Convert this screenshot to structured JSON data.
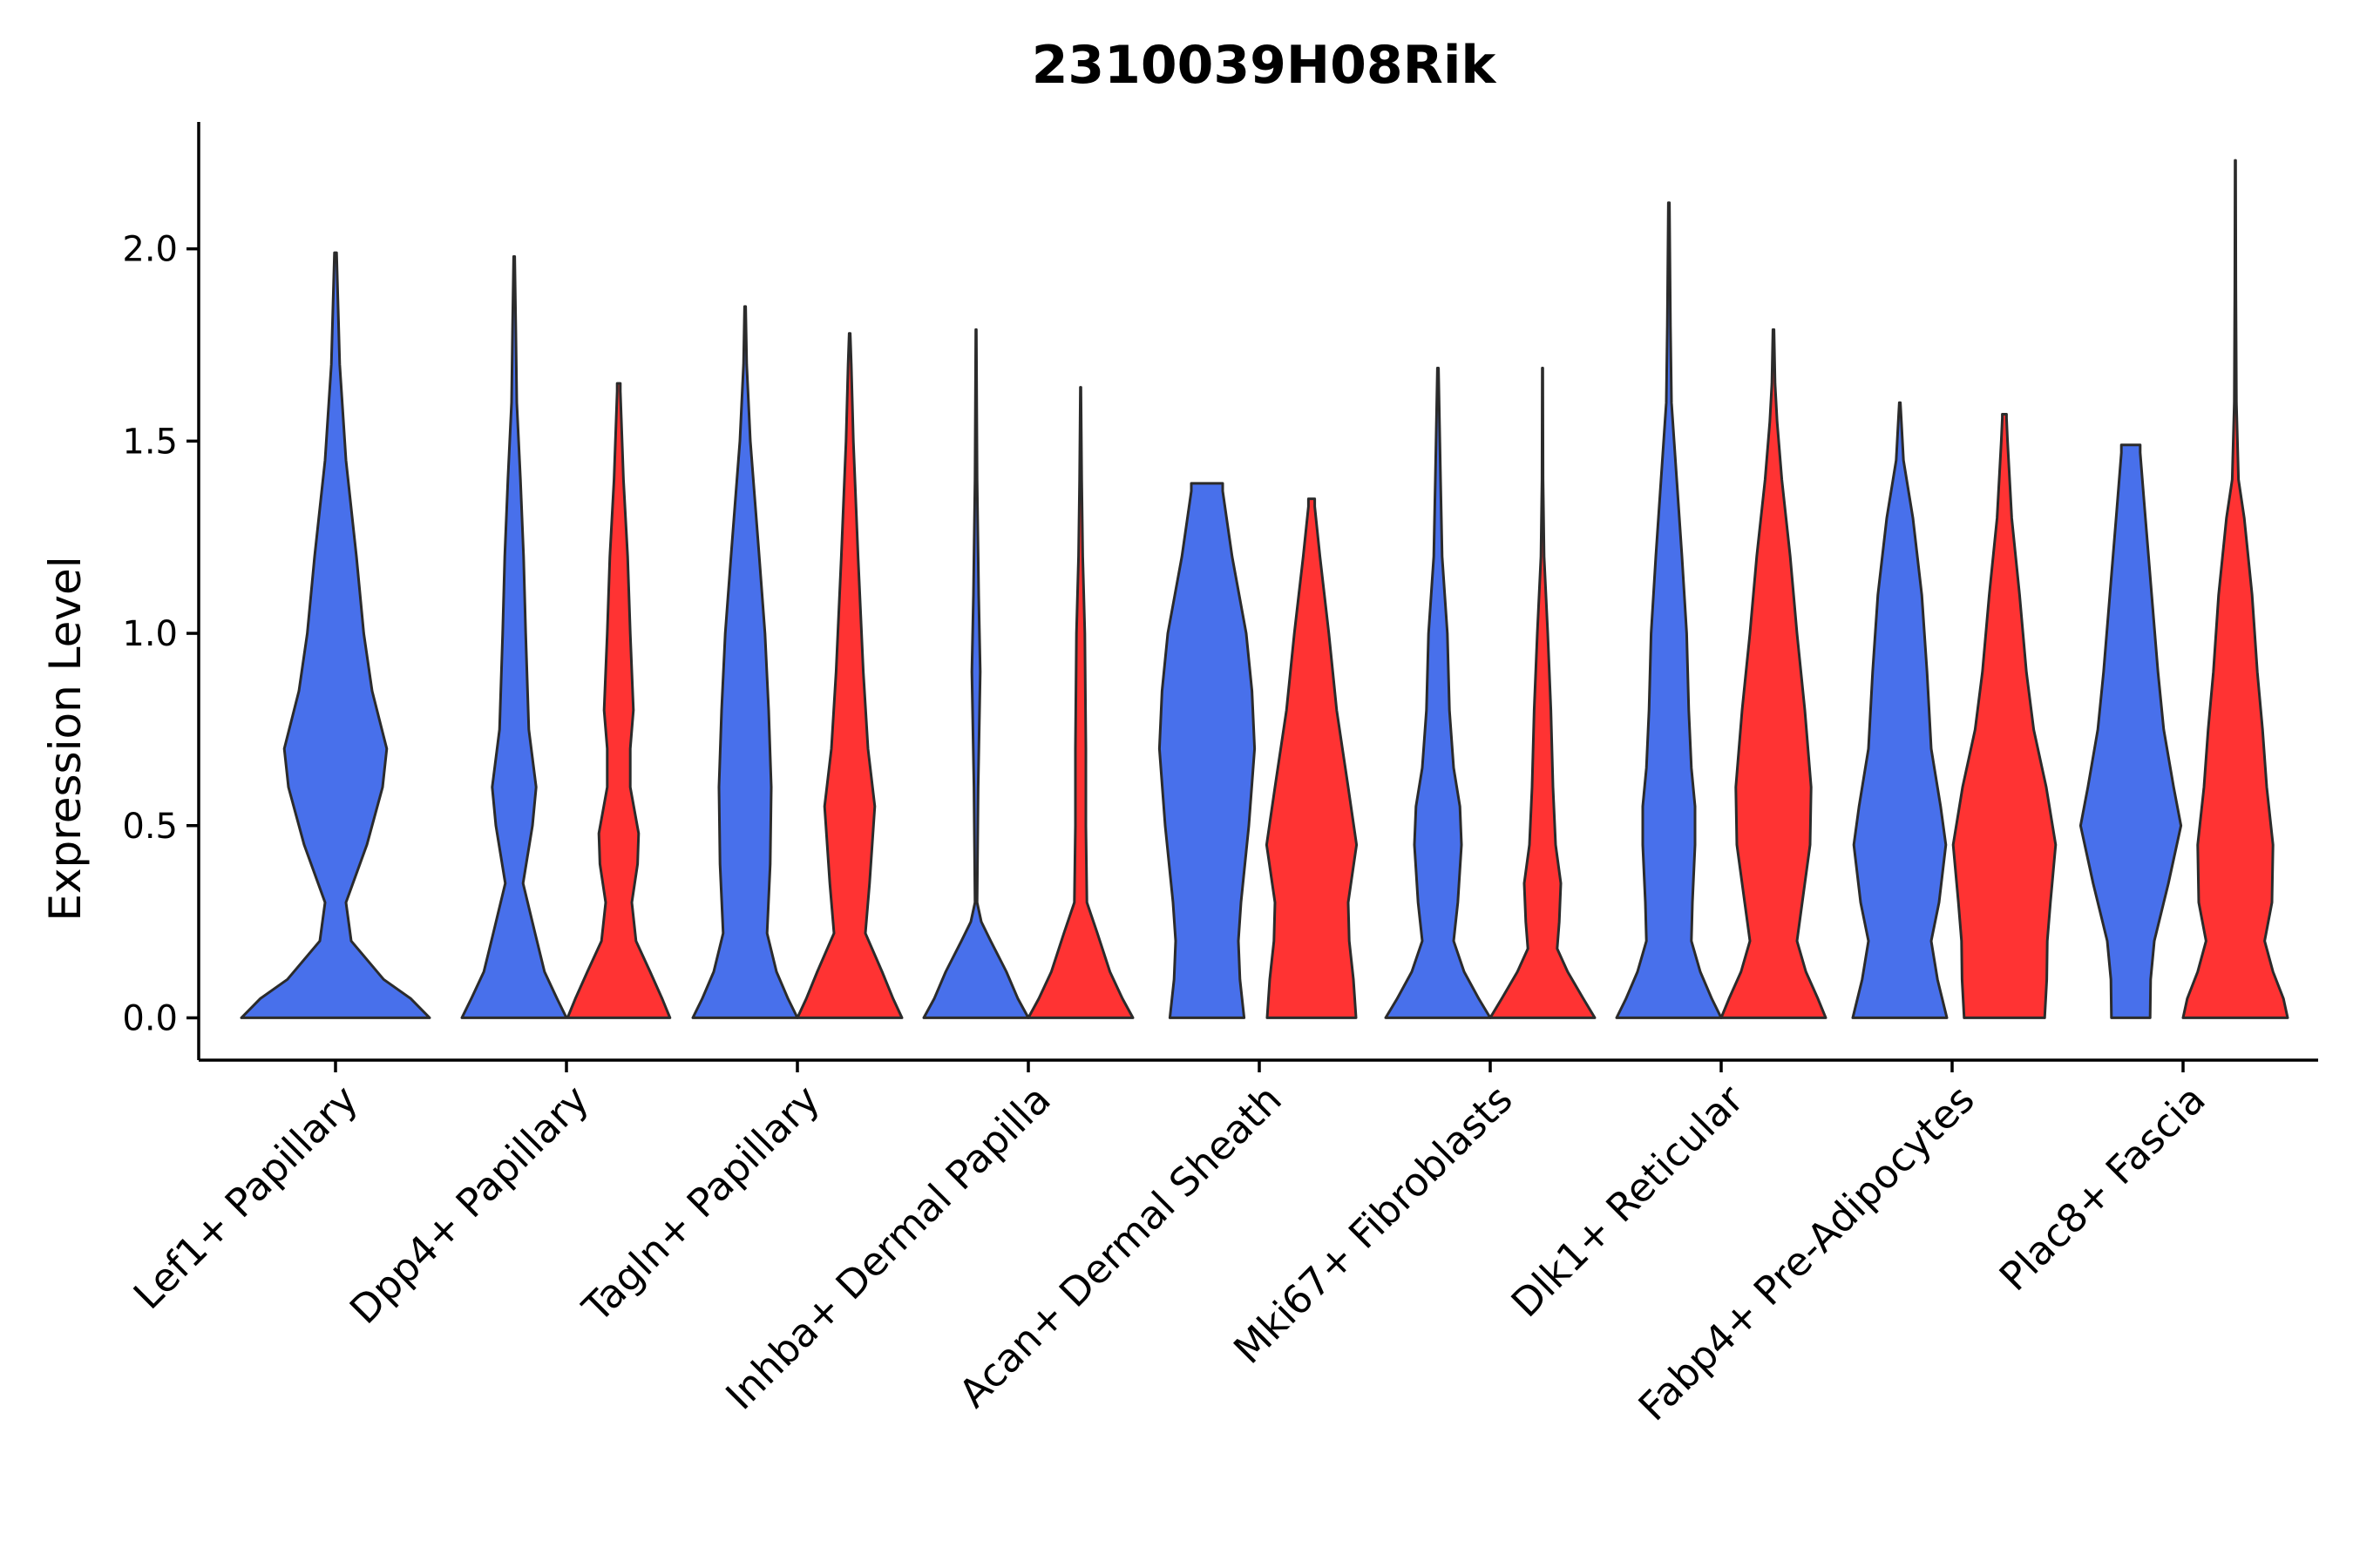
{
  "chart_data": {
    "type": "violin",
    "title": "2310039H08Rik",
    "xlabel": "",
    "ylabel": "Expression Level",
    "ylim": [
      -0.11,
      2.33
    ],
    "yticks": [
      0.0,
      0.5,
      1.0,
      1.5,
      2.0
    ],
    "ytick_labels": [
      "0.0",
      "0.5",
      "1.0",
      "1.5",
      "2.0"
    ],
    "categories": [
      "Lef1+ Papillary",
      "Dpp4+ Papillary",
      "Tagln+ Papillary",
      "Inhba+ Dermal Papilla",
      "Acan+ Dermal Sheath",
      "Mki67+ Fibroblasts",
      "Dlk1+ Reticular",
      "Fabp4+ Pre-Adipocytes",
      "Plac8+ Fascia"
    ],
    "colors": {
      "group1": "#4870eb",
      "group2": "#ff3333"
    },
    "violins": [
      {
        "category": 0,
        "group": "group1",
        "max": 1.99,
        "profile": [
          [
            0,
            0.9
          ],
          [
            0.05,
            0.72
          ],
          [
            0.1,
            0.46
          ],
          [
            0.2,
            0.15
          ],
          [
            0.3,
            0.1
          ],
          [
            0.45,
            0.3
          ],
          [
            0.6,
            0.45
          ],
          [
            0.7,
            0.49
          ],
          [
            0.85,
            0.35
          ],
          [
            1.0,
            0.27
          ],
          [
            1.2,
            0.2
          ],
          [
            1.45,
            0.1
          ],
          [
            1.7,
            0.04
          ],
          [
            1.99,
            0.01
          ]
        ]
      },
      {
        "category": 1,
        "group": "group1",
        "max": 1.98,
        "profile": [
          [
            0,
            1.0
          ],
          [
            0.05,
            0.82
          ],
          [
            0.12,
            0.58
          ],
          [
            0.22,
            0.4
          ],
          [
            0.35,
            0.17
          ],
          [
            0.5,
            0.35
          ],
          [
            0.6,
            0.42
          ],
          [
            0.75,
            0.28
          ],
          [
            1.0,
            0.22
          ],
          [
            1.2,
            0.18
          ],
          [
            1.4,
            0.12
          ],
          [
            1.6,
            0.05
          ],
          [
            1.8,
            0.03
          ],
          [
            1.98,
            0.01
          ]
        ]
      },
      {
        "category": 1,
        "group": "group2",
        "max": 1.65,
        "profile": [
          [
            0,
            0.98
          ],
          [
            0.05,
            0.83
          ],
          [
            0.12,
            0.6
          ],
          [
            0.2,
            0.33
          ],
          [
            0.3,
            0.25
          ],
          [
            0.4,
            0.36
          ],
          [
            0.48,
            0.38
          ],
          [
            0.6,
            0.22
          ],
          [
            0.7,
            0.22
          ],
          [
            0.8,
            0.28
          ],
          [
            1.0,
            0.22
          ],
          [
            1.2,
            0.17
          ],
          [
            1.4,
            0.09
          ],
          [
            1.63,
            0.03
          ],
          [
            1.65,
            0.03
          ]
        ]
      },
      {
        "category": 2,
        "group": "group1",
        "max": 1.85,
        "profile": [
          [
            0,
            1.0
          ],
          [
            0.05,
            0.82
          ],
          [
            0.12,
            0.6
          ],
          [
            0.22,
            0.42
          ],
          [
            0.4,
            0.48
          ],
          [
            0.6,
            0.5
          ],
          [
            0.8,
            0.45
          ],
          [
            1.0,
            0.38
          ],
          [
            1.2,
            0.27
          ],
          [
            1.5,
            0.1
          ],
          [
            1.7,
            0.03
          ],
          [
            1.85,
            0.01
          ]
        ]
      },
      {
        "category": 2,
        "group": "group2",
        "max": 1.78,
        "profile": [
          [
            0,
            1.0
          ],
          [
            0.05,
            0.83
          ],
          [
            0.12,
            0.62
          ],
          [
            0.22,
            0.3
          ],
          [
            0.35,
            0.38
          ],
          [
            0.55,
            0.48
          ],
          [
            0.7,
            0.35
          ],
          [
            0.9,
            0.26
          ],
          [
            1.2,
            0.16
          ],
          [
            1.5,
            0.07
          ],
          [
            1.7,
            0.03
          ],
          [
            1.78,
            0.01
          ]
        ]
      },
      {
        "category": 3,
        "group": "group1",
        "max": 1.79,
        "profile": [
          [
            0,
            1.0
          ],
          [
            0.05,
            0.8
          ],
          [
            0.12,
            0.58
          ],
          [
            0.2,
            0.28
          ],
          [
            0.25,
            0.1
          ],
          [
            0.3,
            0.02
          ],
          [
            0.6,
            0.04
          ],
          [
            0.9,
            0.08
          ],
          [
            1.1,
            0.05
          ],
          [
            1.4,
            0.02
          ],
          [
            1.79,
            0.005
          ]
        ]
      },
      {
        "category": 3,
        "group": "group2",
        "max": 1.64,
        "profile": [
          [
            0,
            1.0
          ],
          [
            0.05,
            0.8
          ],
          [
            0.12,
            0.56
          ],
          [
            0.22,
            0.32
          ],
          [
            0.3,
            0.12
          ],
          [
            0.5,
            0.1
          ],
          [
            0.7,
            0.1
          ],
          [
            1.0,
            0.08
          ],
          [
            1.2,
            0.04
          ],
          [
            1.4,
            0.02
          ],
          [
            1.64,
            0.005
          ]
        ]
      },
      {
        "category": 4,
        "group": "group1",
        "max": 1.39,
        "profile": [
          [
            0,
            0.71
          ],
          [
            0.1,
            0.63
          ],
          [
            0.2,
            0.6
          ],
          [
            0.3,
            0.65
          ],
          [
            0.5,
            0.8
          ],
          [
            0.7,
            0.91
          ],
          [
            0.85,
            0.86
          ],
          [
            1.0,
            0.75
          ],
          [
            1.2,
            0.48
          ],
          [
            1.37,
            0.3
          ],
          [
            1.39,
            0.3
          ]
        ]
      },
      {
        "category": 4,
        "group": "group2",
        "max": 1.35,
        "profile": [
          [
            0,
            0.85
          ],
          [
            0.1,
            0.8
          ],
          [
            0.2,
            0.72
          ],
          [
            0.3,
            0.7
          ],
          [
            0.45,
            0.86
          ],
          [
            0.6,
            0.7
          ],
          [
            0.8,
            0.48
          ],
          [
            1.0,
            0.33
          ],
          [
            1.2,
            0.16
          ],
          [
            1.33,
            0.06
          ],
          [
            1.35,
            0.06
          ]
        ]
      },
      {
        "category": 5,
        "group": "group1",
        "max": 1.69,
        "profile": [
          [
            0,
            1.0
          ],
          [
            0.05,
            0.78
          ],
          [
            0.12,
            0.5
          ],
          [
            0.2,
            0.3
          ],
          [
            0.3,
            0.38
          ],
          [
            0.45,
            0.45
          ],
          [
            0.55,
            0.42
          ],
          [
            0.65,
            0.3
          ],
          [
            0.8,
            0.22
          ],
          [
            1.0,
            0.18
          ],
          [
            1.2,
            0.08
          ],
          [
            1.4,
            0.05
          ],
          [
            1.69,
            0.01
          ]
        ]
      },
      {
        "category": 5,
        "group": "group2",
        "max": 1.69,
        "profile": [
          [
            0,
            1.0
          ],
          [
            0.05,
            0.78
          ],
          [
            0.12,
            0.48
          ],
          [
            0.18,
            0.28
          ],
          [
            0.25,
            0.32
          ],
          [
            0.35,
            0.35
          ],
          [
            0.45,
            0.25
          ],
          [
            0.6,
            0.2
          ],
          [
            0.8,
            0.16
          ],
          [
            1.0,
            0.1
          ],
          [
            1.2,
            0.03
          ],
          [
            1.4,
            0.01
          ],
          [
            1.69,
            0.005
          ]
        ]
      },
      {
        "category": 6,
        "group": "group1",
        "max": 2.12,
        "profile": [
          [
            0,
            1.0
          ],
          [
            0.05,
            0.82
          ],
          [
            0.12,
            0.6
          ],
          [
            0.2,
            0.43
          ],
          [
            0.3,
            0.45
          ],
          [
            0.45,
            0.5
          ],
          [
            0.55,
            0.5
          ],
          [
            0.65,
            0.43
          ],
          [
            0.8,
            0.38
          ],
          [
            1.0,
            0.34
          ],
          [
            1.2,
            0.25
          ],
          [
            1.4,
            0.15
          ],
          [
            1.6,
            0.05
          ],
          [
            1.8,
            0.03
          ],
          [
            2.12,
            0.01
          ]
        ]
      },
      {
        "category": 6,
        "group": "group2",
        "max": 1.79,
        "profile": [
          [
            0,
            1.0
          ],
          [
            0.05,
            0.85
          ],
          [
            0.12,
            0.62
          ],
          [
            0.2,
            0.45
          ],
          [
            0.3,
            0.55
          ],
          [
            0.45,
            0.7
          ],
          [
            0.6,
            0.72
          ],
          [
            0.8,
            0.6
          ],
          [
            1.0,
            0.45
          ],
          [
            1.2,
            0.32
          ],
          [
            1.4,
            0.16
          ],
          [
            1.55,
            0.07
          ],
          [
            1.65,
            0.03
          ],
          [
            1.79,
            0.01
          ]
        ]
      },
      {
        "category": 7,
        "group": "group1",
        "max": 1.6,
        "profile": [
          [
            0,
            0.9
          ],
          [
            0.1,
            0.72
          ],
          [
            0.2,
            0.6
          ],
          [
            0.3,
            0.75
          ],
          [
            0.45,
            0.88
          ],
          [
            0.55,
            0.78
          ],
          [
            0.7,
            0.6
          ],
          [
            0.9,
            0.52
          ],
          [
            1.1,
            0.42
          ],
          [
            1.3,
            0.25
          ],
          [
            1.45,
            0.07
          ],
          [
            1.6,
            0.01
          ]
        ]
      },
      {
        "category": 7,
        "group": "group2",
        "max": 1.57,
        "profile": [
          [
            0,
            0.77
          ],
          [
            0.1,
            0.81
          ],
          [
            0.2,
            0.82
          ],
          [
            0.3,
            0.88
          ],
          [
            0.45,
            0.98
          ],
          [
            0.6,
            0.8
          ],
          [
            0.75,
            0.56
          ],
          [
            0.9,
            0.42
          ],
          [
            1.1,
            0.29
          ],
          [
            1.3,
            0.14
          ],
          [
            1.5,
            0.06
          ],
          [
            1.56,
            0.04
          ],
          [
            1.57,
            0.04
          ]
        ]
      },
      {
        "category": 8,
        "group": "group1",
        "max": 1.49,
        "profile": [
          [
            0,
            0.37
          ],
          [
            0.1,
            0.38
          ],
          [
            0.2,
            0.45
          ],
          [
            0.35,
            0.72
          ],
          [
            0.5,
            0.96
          ],
          [
            0.6,
            0.82
          ],
          [
            0.75,
            0.63
          ],
          [
            0.9,
            0.52
          ],
          [
            1.1,
            0.4
          ],
          [
            1.3,
            0.28
          ],
          [
            1.47,
            0.18
          ],
          [
            1.49,
            0.18
          ]
        ]
      },
      {
        "category": 8,
        "group": "group2",
        "max": 2.23,
        "profile": [
          [
            0,
            1.0
          ],
          [
            0.05,
            0.92
          ],
          [
            0.12,
            0.72
          ],
          [
            0.2,
            0.56
          ],
          [
            0.3,
            0.7
          ],
          [
            0.45,
            0.72
          ],
          [
            0.6,
            0.6
          ],
          [
            0.75,
            0.52
          ],
          [
            0.9,
            0.42
          ],
          [
            1.1,
            0.32
          ],
          [
            1.3,
            0.17
          ],
          [
            1.4,
            0.06
          ],
          [
            1.6,
            0.02
          ],
          [
            1.9,
            0.01
          ],
          [
            2.23,
            0.005
          ]
        ]
      }
    ]
  }
}
